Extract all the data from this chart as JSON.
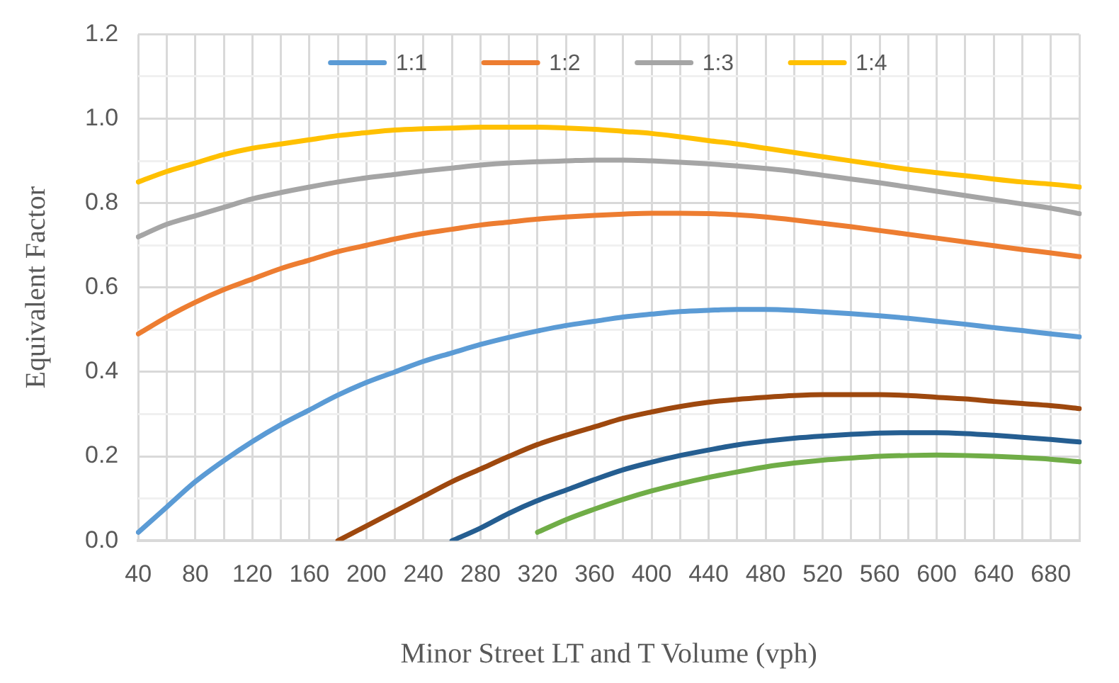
{
  "chart_data": {
    "type": "line",
    "xlabel": "Minor Street LT and T Volume (vph)",
    "ylabel": "Equivalent Factor",
    "categories": [
      "40",
      null,
      "80",
      null,
      "120",
      null,
      "160",
      null,
      "200",
      null,
      "240",
      null,
      "280",
      null,
      "320",
      null,
      "360",
      null,
      "400",
      null,
      "440",
      null,
      "480",
      null,
      "520",
      null,
      "560",
      null,
      "600",
      null,
      "640",
      null,
      "680",
      null
    ],
    "ylim": [
      0,
      1.2
    ],
    "yticks": [
      {
        "value": 0,
        "label": "0.0"
      },
      {
        "value": 0.1,
        "label": null
      },
      {
        "value": 0.2,
        "label": "0.2"
      },
      {
        "value": 0.3,
        "label": null
      },
      {
        "value": 0.4,
        "label": "0.4"
      },
      {
        "value": 0.5,
        "label": null
      },
      {
        "value": 0.6,
        "label": "0.6"
      },
      {
        "value": 0.7,
        "label": null
      },
      {
        "value": 0.8,
        "label": "0.8"
      },
      {
        "value": 0.9,
        "label": null
      },
      {
        "value": 1,
        "label": "1.0"
      },
      {
        "value": 1.1,
        "label": null
      },
      {
        "value": 1.2,
        "label": "1.2"
      }
    ],
    "grid": true,
    "legend": "top",
    "marker": "none",
    "line_style": "solid",
    "series": [
      {
        "name": "1:1",
        "color": "#5b9bd5",
        "values": [
          0.02,
          0.08,
          0.14,
          0.19,
          0.235,
          0.275,
          0.31,
          0.345,
          0.375,
          0.4,
          0.425,
          0.445,
          0.465,
          0.482,
          0.497,
          0.51,
          0.52,
          0.53,
          0.537,
          0.543,
          0.546,
          0.548,
          0.548,
          0.546,
          0.542,
          0.538,
          0.533,
          0.527,
          0.52,
          0.513,
          0.505,
          0.498,
          0.49,
          0.483
        ]
      },
      {
        "name": "1:2",
        "color": "#ed7d31",
        "values": [
          0.49,
          0.53,
          0.565,
          0.595,
          0.62,
          0.645,
          0.665,
          0.685,
          0.7,
          0.715,
          0.728,
          0.738,
          0.748,
          0.755,
          0.762,
          0.767,
          0.771,
          0.774,
          0.776,
          0.776,
          0.775,
          0.772,
          0.767,
          0.76,
          0.752,
          0.744,
          0.735,
          0.726,
          0.717,
          0.708,
          0.699,
          0.69,
          0.682,
          0.673
        ]
      },
      {
        "name": "1:3",
        "color": "#a5a5a5",
        "values": [
          0.72,
          0.75,
          0.77,
          0.79,
          0.81,
          0.825,
          0.838,
          0.85,
          0.86,
          0.868,
          0.876,
          0.883,
          0.89,
          0.895,
          0.898,
          0.9,
          0.902,
          0.902,
          0.9,
          0.897,
          0.893,
          0.888,
          0.882,
          0.875,
          0.866,
          0.857,
          0.848,
          0.838,
          0.828,
          0.818,
          0.808,
          0.798,
          0.788,
          0.775
        ]
      },
      {
        "name": "1:4",
        "color": "#ffc000",
        "values": [
          0.85,
          0.875,
          0.895,
          0.915,
          0.93,
          0.94,
          0.95,
          0.96,
          0.967,
          0.973,
          0.976,
          0.978,
          0.98,
          0.98,
          0.98,
          0.978,
          0.975,
          0.97,
          0.965,
          0.957,
          0.948,
          0.94,
          0.93,
          0.92,
          0.91,
          0.9,
          0.89,
          0.88,
          0.872,
          0.865,
          0.857,
          0.85,
          0.845,
          0.838
        ]
      },
      {
        "color": "#9e480e",
        "values": [
          null,
          null,
          null,
          null,
          null,
          null,
          null,
          0,
          0.035,
          0.07,
          0.105,
          0.14,
          0.17,
          0.2,
          0.228,
          0.25,
          0.27,
          0.29,
          0.305,
          0.318,
          0.328,
          0.335,
          0.34,
          0.344,
          0.346,
          0.346,
          0.346,
          0.344,
          0.34,
          0.336,
          0.33,
          0.325,
          0.32,
          0.313
        ]
      },
      {
        "color": "#255e91",
        "values": [
          null,
          null,
          null,
          null,
          null,
          null,
          null,
          null,
          null,
          null,
          null,
          0,
          0.03,
          0.065,
          0.095,
          0.12,
          0.145,
          0.168,
          0.186,
          0.202,
          0.215,
          0.227,
          0.236,
          0.243,
          0.248,
          0.252,
          0.255,
          0.256,
          0.256,
          0.254,
          0.25,
          0.245,
          0.24,
          0.234
        ]
      },
      {
        "color": "#70ad47",
        "values": [
          null,
          null,
          null,
          null,
          null,
          null,
          null,
          null,
          null,
          null,
          null,
          null,
          null,
          null,
          0.02,
          0.05,
          0.075,
          0.098,
          0.118,
          0.135,
          0.15,
          0.163,
          0.175,
          0.184,
          0.191,
          0.196,
          0.2,
          0.202,
          0.203,
          0.202,
          0.2,
          0.197,
          0.193,
          0.187
        ]
      }
    ]
  }
}
